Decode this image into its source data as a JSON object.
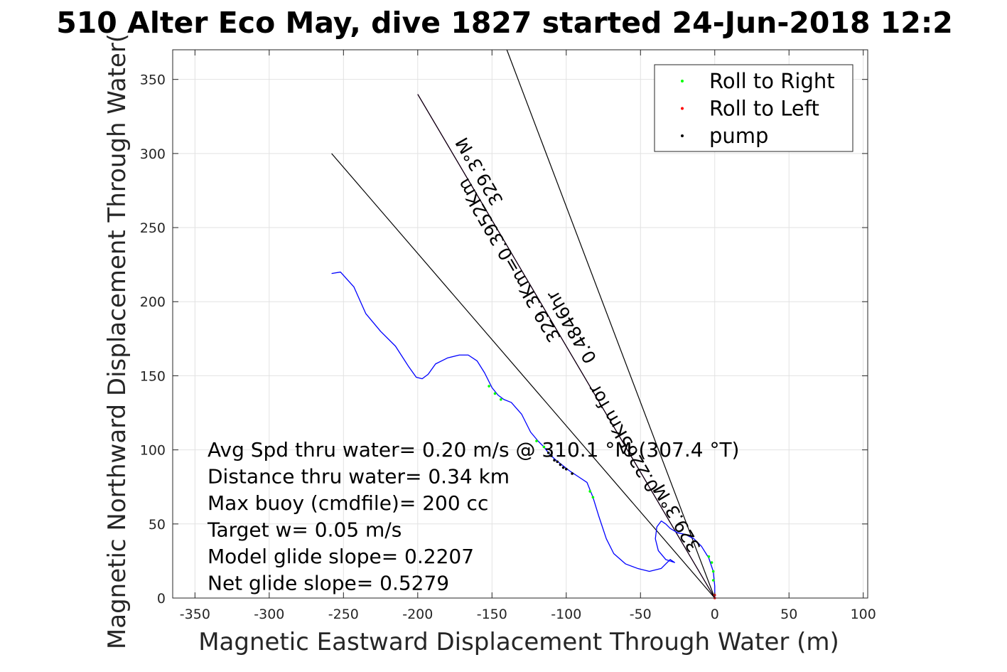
{
  "chart_data": {
    "type": "line",
    "title": "510 Alter Eco May, dive 1827 started 24-Jun-2018 12:2",
    "xlabel": "Magnetic Eastward Displacement Through Water (m)",
    "ylabel": "Magnetic Northward Displacement Through Water(",
    "xlim": [
      -365,
      103
    ],
    "ylim": [
      0,
      370
    ],
    "xticks": [
      -350,
      -300,
      -250,
      -200,
      -150,
      -100,
      -50,
      0,
      50,
      100
    ],
    "yticks": [
      0,
      50,
      100,
      150,
      200,
      250,
      300,
      350
    ],
    "grid": true,
    "legend_position": "top-right",
    "legend": [
      {
        "label": "Roll to Right",
        "color": "#00ff00"
      },
      {
        "label": "Roll to Left",
        "color": "#ff0000"
      },
      {
        "label": "pump",
        "color": "#000000"
      }
    ],
    "track": {
      "color": "#0000ff",
      "points": [
        [
          0,
          0
        ],
        [
          0,
          8
        ],
        [
          -1,
          18
        ],
        [
          -4,
          27
        ],
        [
          -9,
          35
        ],
        [
          -14,
          40
        ],
        [
          -20,
          43
        ],
        [
          -25,
          44
        ],
        [
          -30,
          47
        ],
        [
          -33,
          50
        ],
        [
          -36,
          52
        ],
        [
          -39,
          48
        ],
        [
          -40,
          40
        ],
        [
          -38,
          32
        ],
        [
          -33,
          26
        ],
        [
          -27,
          24
        ],
        [
          -30,
          26
        ],
        [
          -36,
          20
        ],
        [
          -44,
          18
        ],
        [
          -52,
          20
        ],
        [
          -60,
          23
        ],
        [
          -68,
          30
        ],
        [
          -73,
          40
        ],
        [
          -78,
          55
        ],
        [
          -82,
          68
        ],
        [
          -86,
          78
        ],
        [
          -92,
          82
        ],
        [
          -98,
          86
        ],
        [
          -103,
          90
        ],
        [
          -108,
          94
        ],
        [
          -112,
          98
        ],
        [
          -115,
          102
        ],
        [
          -119,
          106
        ],
        [
          -124,
          112
        ],
        [
          -130,
          124
        ],
        [
          -137,
          132
        ],
        [
          -142,
          134
        ],
        [
          -146,
          137
        ],
        [
          -150,
          142
        ],
        [
          -155,
          152
        ],
        [
          -160,
          160
        ],
        [
          -166,
          164
        ],
        [
          -172,
          164
        ],
        [
          -180,
          162
        ],
        [
          -188,
          158
        ],
        [
          -193,
          151
        ],
        [
          -197,
          148
        ],
        [
          -201,
          149
        ],
        [
          -206,
          156
        ],
        [
          -215,
          170
        ],
        [
          -225,
          180
        ],
        [
          -235,
          192
        ],
        [
          -243,
          210
        ],
        [
          -252,
          220
        ],
        [
          -258,
          219
        ]
      ]
    },
    "roll_right_points": [
      [
        -1,
        12
      ],
      [
        -1,
        18
      ],
      [
        -2,
        24
      ],
      [
        -4,
        28
      ],
      [
        -82,
        68
      ],
      [
        -84,
        72
      ],
      [
        -144,
        134
      ],
      [
        -148,
        138
      ],
      [
        -152,
        143
      ],
      [
        -115,
        102
      ],
      [
        -112,
        98
      ],
      [
        -120,
        106
      ]
    ],
    "roll_left_points": [
      [
        0,
        0
      ],
      [
        0,
        2
      ]
    ],
    "pump_points": [
      [
        -112,
        98
      ],
      [
        -108,
        93
      ],
      [
        -104,
        90
      ],
      [
        -100,
        87
      ],
      [
        -96,
        84
      ],
      [
        -110,
        96
      ],
      [
        -106,
        92
      ],
      [
        -102,
        88
      ]
    ],
    "reference_lines": [
      {
        "from": [
          0,
          0
        ],
        "to": [
          -200,
          340
        ],
        "color": "#c000c0"
      },
      {
        "from": [
          0,
          0
        ],
        "to": [
          -258,
          300
        ],
        "color": "#000000"
      },
      {
        "from": [
          0,
          0
        ],
        "to": [
          -140,
          370
        ],
        "color": "#000000"
      },
      {
        "from": [
          0,
          0
        ],
        "to": [
          -200,
          340
        ],
        "color": "#000000"
      }
    ],
    "line_labels": [
      {
        "text": "329.3°M",
        "at": [
          -155,
          290
        ],
        "angle_deg": 59.7
      },
      {
        "text": "329.3Km=0.3952Km",
        "at": [
          -135,
          230
        ],
        "angle_deg": 59.7
      },
      {
        "text": "0.4846hr",
        "at": [
          -93,
          185
        ],
        "angle_deg": 59.7
      },
      {
        "text": "0.2265Km for",
        "at": [
          -58,
          110
        ],
        "angle_deg": 59.7
      },
      {
        "text": "329.3°M",
        "at": [
          -22,
          56
        ],
        "angle_deg": 59.7
      }
    ],
    "annotations": [
      "Avg Spd thru water=  0.20 m/s @ 310.1 °M (307.4 °T)",
      "Distance thru water=  0.34 km",
      "Max buoy (cmdfile)= 200 cc",
      "Target w= 0.05 m/s",
      "Model glide slope= 0.2207",
      "Net glide slope= 0.5279"
    ]
  }
}
